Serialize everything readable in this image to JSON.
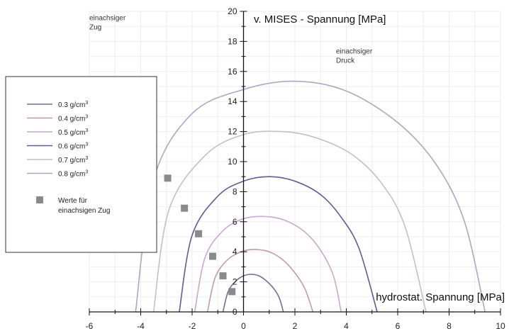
{
  "chart_data": {
    "type": "line",
    "title": "",
    "xlabel": "hydrostat. Spannung [MPa]",
    "ylabel": "v. MISES - Spannung [MPa]",
    "xlim": [
      -6,
      10
    ],
    "ylim": [
      0,
      20
    ],
    "x_ticks": [
      "-6",
      "-4",
      "-2",
      "0",
      "2",
      "4",
      "6",
      "8",
      "10"
    ],
    "y_ticks": [
      "0",
      "2",
      "4",
      "6",
      "8",
      "10",
      "12",
      "14",
      "16",
      "18",
      "20"
    ],
    "grid": true,
    "legend_position": "left",
    "annotations": [
      {
        "text": [
          "einachsiger",
          "Zug"
        ],
        "x": -6.0,
        "y": 19.4
      },
      {
        "text": [
          "einachsiger",
          "Druck"
        ],
        "x": 3.6,
        "y": 17.2
      }
    ],
    "series": [
      {
        "name": "0.3 g/cm³",
        "color": "#6f6f9a",
        "x": [
          -0.8,
          -0.6,
          -0.3,
          0,
          0.3,
          0.6,
          0.9,
          1.2,
          1.4,
          1.55
        ],
        "y": [
          0,
          1.35,
          2.05,
          2.4,
          2.5,
          2.4,
          2.05,
          1.5,
          0.9,
          0
        ]
      },
      {
        "name": "0.4 g/cm³",
        "color": "#c49aa0",
        "x": [
          -1.4,
          -1.1,
          -0.6,
          0,
          0.5,
          1.0,
          1.5,
          2.0,
          2.4,
          2.7
        ],
        "y": [
          0,
          2.3,
          3.5,
          4.05,
          4.15,
          4.0,
          3.5,
          2.6,
          1.5,
          0
        ]
      },
      {
        "name": "0.5 g/cm³",
        "color": "#c9a8d0",
        "x": [
          -1.9,
          -1.5,
          -0.8,
          0,
          0.8,
          1.6,
          2.4,
          3.0,
          3.5,
          3.8
        ],
        "y": [
          0,
          3.6,
          5.4,
          6.2,
          6.35,
          6.1,
          5.3,
          4.1,
          2.4,
          0
        ]
      },
      {
        "name": "0.6 g/cm³",
        "color": "#5e5e95",
        "x": [
          -2.5,
          -2.0,
          -1.0,
          0,
          1.0,
          2.0,
          3.0,
          3.8,
          4.5,
          5.2
        ],
        "y": [
          0,
          5.1,
          7.7,
          8.7,
          9.0,
          8.7,
          7.8,
          6.3,
          4.2,
          0
        ]
      },
      {
        "name": "0.7 g/cm³",
        "color": "#c8bbcd",
        "x": [
          -3.5,
          -2.9,
          -1.5,
          0,
          1.5,
          2.8,
          4.2,
          5.4,
          6.3,
          7.1
        ],
        "y": [
          0,
          6.8,
          10.4,
          11.8,
          12.0,
          11.6,
          10.5,
          8.5,
          5.6,
          0
        ]
      },
      {
        "name": "0.8 g/cm³",
        "color": "#a8a8c4",
        "x": [
          -4.2,
          -3.5,
          -2.0,
          0,
          2.0,
          4.0,
          6.0,
          7.5,
          8.6,
          9.4
        ],
        "y": [
          0,
          8.8,
          13.2,
          14.8,
          15.35,
          14.7,
          12.6,
          9.8,
          6.0,
          0
        ]
      }
    ],
    "points": {
      "name": "Werte für einachsigen Zug",
      "color": "#8a8a8a",
      "x": [
        -2.95,
        -2.3,
        -1.75,
        -1.2,
        -0.8,
        -0.45
      ],
      "y": [
        8.9,
        6.9,
        5.2,
        3.7,
        2.4,
        1.35
      ]
    },
    "legend_lines": [
      {
        "label": "0.3 g/cm",
        "sup": "3"
      },
      {
        "label": "0.4 g/cm",
        "sup": "3"
      },
      {
        "label": "0.5 g/cm",
        "sup": "3"
      },
      {
        "label": "0.6 g/cm",
        "sup": "3"
      },
      {
        "label": "0.7 g/cm",
        "sup": "3"
      },
      {
        "label": "0.8 g/cm",
        "sup": "3"
      }
    ],
    "legend_marker_text": [
      "Werte für",
      "einachsigen Zug"
    ]
  }
}
